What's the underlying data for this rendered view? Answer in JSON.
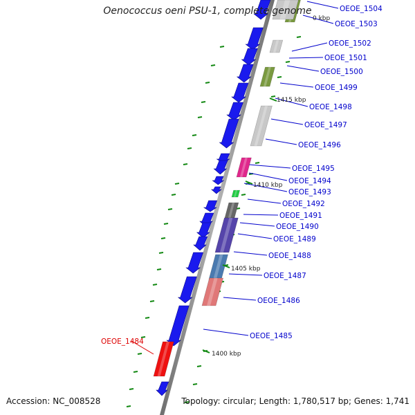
{
  "title": "Oenococcus oeni PSU-1, complete genome",
  "footer": {
    "accession": "Accession: NC_008528",
    "topology": "Topology: circular; Length: 1,780,517 bp; Genes: 1,741"
  },
  "genes": [
    {
      "label": "OEOE_1504",
      "color": "#7a9a40"
    },
    {
      "label": "OEOE_1503",
      "color": "#c8c8c8"
    },
    {
      "label": "OEOE_1502",
      "color": "#c8c8c8"
    },
    {
      "label": "OEOE_1501",
      "color": "#1a1aee"
    },
    {
      "label": "OEOE_1500",
      "color": "#7a9a40"
    },
    {
      "label": "OEOE_1499",
      "color": "#1a1aee"
    },
    {
      "label": "OEOE_1498",
      "color": "#1a1aee"
    },
    {
      "label": "OEOE_1497",
      "color": "#c8c8c8"
    },
    {
      "label": "OEOE_1496",
      "color": "#1a1aee"
    },
    {
      "label": "OEOE_1495",
      "color": "#1a1aee"
    },
    {
      "label": "OEOE_1494",
      "color": "#e0288c"
    },
    {
      "label": "OEOE_1493",
      "color": "#1a1aee"
    },
    {
      "label": "OEOE_1492",
      "color": "#22cc44"
    },
    {
      "label": "OEOE_1491",
      "color": "#1a1aee"
    },
    {
      "label": "OEOE_1490",
      "color": "#666666"
    },
    {
      "label": "OEOE_1489",
      "color": "#5544aa"
    },
    {
      "label": "OEOE_1488",
      "color": "#1a1aee"
    },
    {
      "label": "OEOE_1487",
      "color": "#4a7ab0"
    },
    {
      "label": "OEOE_1486",
      "color": "#e07878"
    },
    {
      "label": "OEOE_1485",
      "color": "#1a1aee"
    },
    {
      "label": "OEOE_1484",
      "color": "#ee1111",
      "highlight": true
    }
  ],
  "ticks": [
    {
      "label": "1415 kbp"
    },
    {
      "label": "1410 kbp"
    },
    {
      "label": "1405 kbp"
    },
    {
      "label": "1400 kbp"
    }
  ],
  "partial_labels": [
    {
      "text": "0 kbp"
    }
  ],
  "colors": {
    "gene_default": "#1a1aee",
    "label_blue": "#0000cc",
    "label_red": "#dd0000",
    "dash_green": "#118811"
  }
}
